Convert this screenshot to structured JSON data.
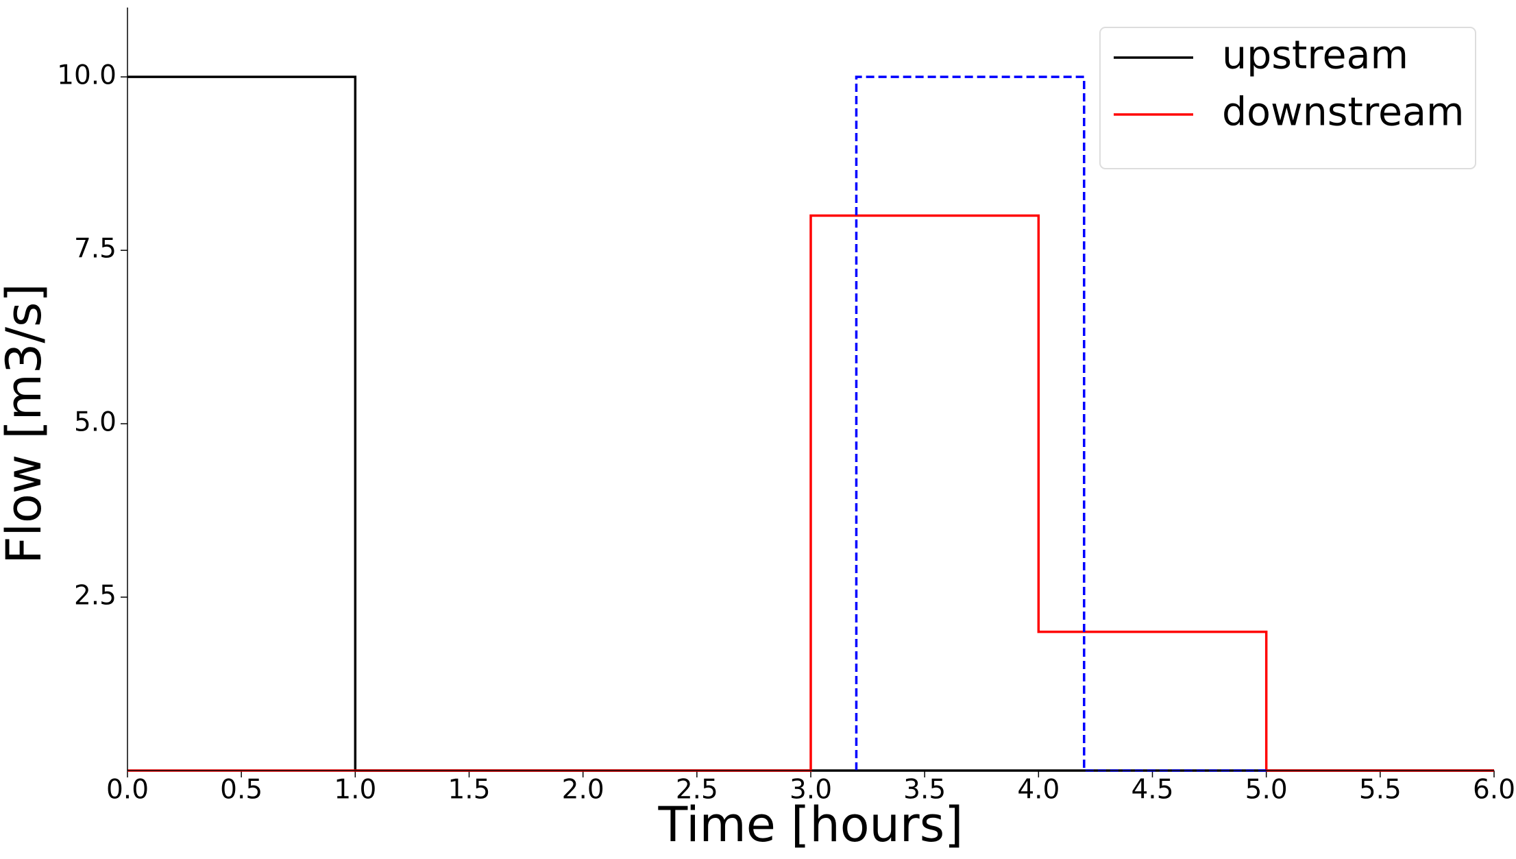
{
  "chart_data": {
    "type": "line",
    "xlabel": "Time [hours]",
    "ylabel": "Flow [m3/s]",
    "series": [
      {
        "name": "upstream",
        "color": "#000000",
        "dashed": false,
        "x": [
          0,
          1,
          1,
          6
        ],
        "values": [
          10,
          10,
          0,
          0
        ]
      },
      {
        "name": "downstream",
        "color": "#ff0000",
        "dashed": false,
        "x": [
          0,
          3,
          3,
          4,
          4,
          5,
          5,
          6
        ],
        "values": [
          0,
          0,
          8,
          8,
          2,
          2,
          0,
          0
        ]
      },
      {
        "color": "#0000ff",
        "dashed": true,
        "x": [
          3.2,
          3.2,
          4.2,
          4.2,
          5
        ],
        "values": [
          0,
          10,
          10,
          0,
          0
        ]
      }
    ],
    "xlim": [
      0,
      6
    ],
    "ylim": [
      0,
      11
    ],
    "xticks": [
      {
        "value": 0,
        "label": "0.0"
      },
      0.5,
      {
        "value": 1,
        "label": "1.0"
      },
      1.5,
      {
        "value": 2,
        "label": "2.0"
      },
      2.5,
      {
        "value": 3,
        "label": "3.0"
      },
      3.5,
      {
        "value": 4,
        "label": "4.0"
      },
      4.5,
      {
        "value": 5,
        "label": "5.0"
      },
      5.5,
      {
        "value": 6,
        "label": "6.0"
      }
    ],
    "yticks": [
      2.5,
      {
        "value": 5,
        "label": "5.0"
      },
      7.5,
      {
        "value": 10,
        "label": "10.0"
      }
    ],
    "grid": false,
    "legend": "upper right"
  }
}
